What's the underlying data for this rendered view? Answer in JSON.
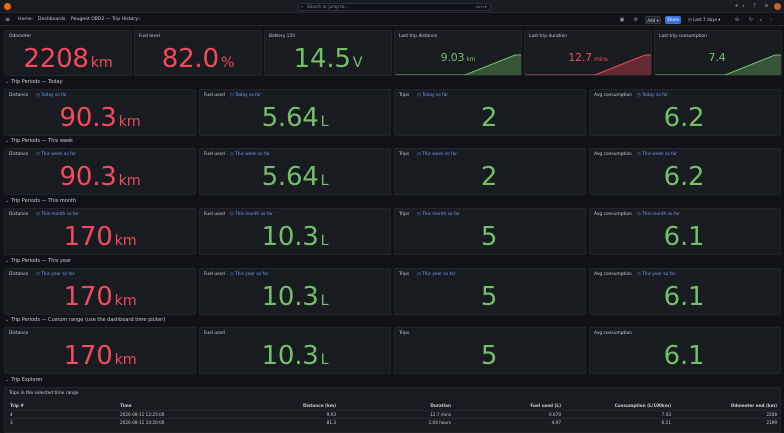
{
  "topbar": {
    "search_placeholder": "Search or jump to...",
    "search_shortcut": "ctrl+k"
  },
  "nav": {
    "breadcrumbs": [
      "Home",
      "Dashboards",
      "Peugeot OBD2 — Trip History"
    ],
    "add_label": "Add",
    "share_label": "Share",
    "time_range": "Last 7 days"
  },
  "stats": [
    {
      "title": "Odometer",
      "value": "2208",
      "unit": "km",
      "color": "#f2495c"
    },
    {
      "title": "Fuel level",
      "value": "82.0",
      "unit": "%",
      "color": "#f2495c"
    },
    {
      "title": "Battery 12V",
      "value": "14.5",
      "unit": "V",
      "color": "#73bf69"
    },
    {
      "title": "Last trip distance",
      "value": "9.03",
      "unit": "km",
      "color": "#73bf69"
    },
    {
      "title": "Last trip duration",
      "value": "12.7",
      "unit": "mins",
      "color": "#f2495c"
    },
    {
      "title": "Last trip consumption",
      "value": "7.4",
      "unit": "",
      "color": "#73bf69"
    }
  ],
  "sections": [
    {
      "title": "Trip Periods — Today",
      "panels": [
        {
          "title": "Distance",
          "desc": "Today so far",
          "value": "90.3",
          "unit": "km",
          "color": "#f2495c"
        },
        {
          "title": "Fuel used",
          "desc": "Today so far",
          "value": "5.64",
          "unit": "L",
          "color": "#73bf69"
        },
        {
          "title": "Trips",
          "desc": "Today so far",
          "value": "2",
          "unit": "",
          "color": "#73bf69"
        },
        {
          "title": "Avg consumption",
          "desc": "Today so far",
          "value": "6.2",
          "unit": "",
          "color": "#73bf69"
        }
      ]
    },
    {
      "title": "Trip Periods — This week",
      "panels": [
        {
          "title": "Distance",
          "desc": "This week so far",
          "value": "90.3",
          "unit": "km",
          "color": "#f2495c"
        },
        {
          "title": "Fuel used",
          "desc": "This week so far",
          "value": "5.64",
          "unit": "L",
          "color": "#73bf69"
        },
        {
          "title": "Trips",
          "desc": "This week so far",
          "value": "2",
          "unit": "",
          "color": "#73bf69"
        },
        {
          "title": "Avg consumption",
          "desc": "This week so far",
          "value": "6.2",
          "unit": "",
          "color": "#73bf69"
        }
      ]
    },
    {
      "title": "Trip Periods — This month",
      "panels": [
        {
          "title": "Distance",
          "desc": "This month so far",
          "value": "170",
          "unit": "km",
          "color": "#f2495c"
        },
        {
          "title": "Fuel used",
          "desc": "This month so far",
          "value": "10.3",
          "unit": "L",
          "color": "#73bf69"
        },
        {
          "title": "Trips",
          "desc": "This month so far",
          "value": "5",
          "unit": "",
          "color": "#73bf69"
        },
        {
          "title": "Avg consumption",
          "desc": "This month so far",
          "value": "6.1",
          "unit": "",
          "color": "#73bf69"
        }
      ]
    },
    {
      "title": "Trip Periods — This year",
      "panels": [
        {
          "title": "Distance",
          "desc": "This year so far",
          "value": "170",
          "unit": "km",
          "color": "#f2495c"
        },
        {
          "title": "Fuel used",
          "desc": "This year so far",
          "value": "10.3",
          "unit": "L",
          "color": "#73bf69"
        },
        {
          "title": "Trips",
          "desc": "This year so far",
          "value": "5",
          "unit": "",
          "color": "#73bf69"
        },
        {
          "title": "Avg consumption",
          "desc": "This year so far",
          "value": "6.1",
          "unit": "",
          "color": "#73bf69"
        }
      ]
    },
    {
      "title": "Trip Periods — Custom range (use the dashboard time picker)",
      "panels": [
        {
          "title": "Distance",
          "desc": "",
          "value": "170",
          "unit": "km",
          "color": "#f2495c"
        },
        {
          "title": "Fuel used",
          "desc": "",
          "value": "10.3",
          "unit": "L",
          "color": "#73bf69"
        },
        {
          "title": "Trips",
          "desc": "",
          "value": "5",
          "unit": "",
          "color": "#73bf69"
        },
        {
          "title": "Avg consumption",
          "desc": "",
          "value": "6.1",
          "unit": "",
          "color": "#73bf69"
        }
      ]
    }
  ],
  "explorer": {
    "row_title": "Trip Explorer",
    "panel_title": "Trips in the selected time range",
    "columns": [
      "Trip #",
      "Time",
      "Distance (km)",
      "Duration",
      "Fuel used (L)",
      "Consumption (L/100km)",
      "Odometer end (km)"
    ],
    "rows": [
      [
        "4",
        "2026-08-11 12:25:00",
        "9.03",
        "12.7 mins",
        "0.670",
        "7.43",
        "2208"
      ],
      [
        "3",
        "2026-08-11 10:20:00",
        "81.3",
        "1.04 hours",
        "4.97",
        "6.11",
        "2199"
      ]
    ]
  }
}
